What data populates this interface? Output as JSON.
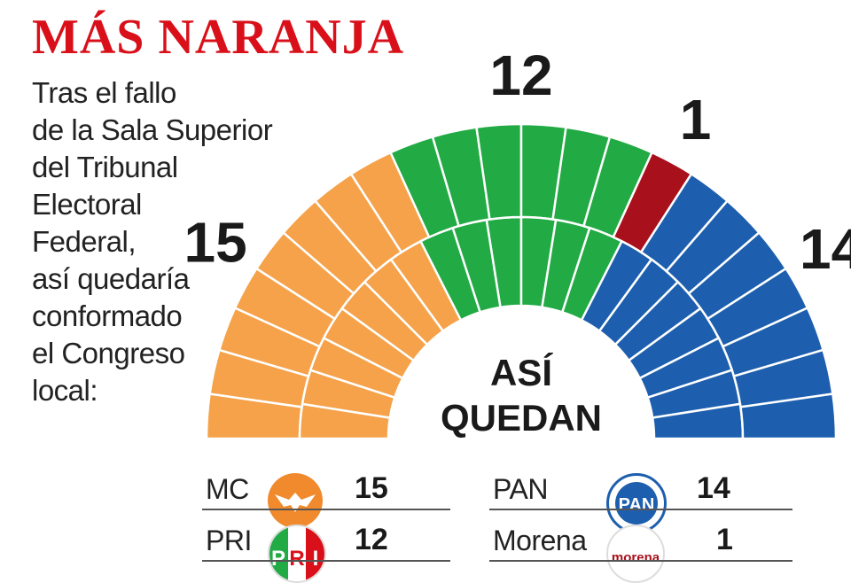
{
  "title": "MÁS NARANJA",
  "subtitle_lines": [
    "Tras el fallo",
    "de la Sala Superior",
    "del Tribunal",
    "Electoral",
    "Federal,",
    "así quedaría",
    "conformado",
    "el Congreso",
    "local:"
  ],
  "center_label": [
    "ASÍ",
    "QUEDAN"
  ],
  "chart_data": {
    "type": "parliament",
    "total_seats": 42,
    "series": [
      {
        "name": "MC",
        "value": 15,
        "color": "#f5a24a"
      },
      {
        "name": "PRI",
        "value": 12,
        "color": "#22aa44"
      },
      {
        "name": "Morena",
        "value": 1,
        "color": "#a8101c"
      },
      {
        "name": "PAN",
        "value": 14,
        "color": "#1d5fae"
      }
    ]
  },
  "legend": [
    {
      "name": "MC",
      "value": "15",
      "logo_icon": "mc-eagle-logo-icon",
      "logo_color": "#f08a2c"
    },
    {
      "name": "PRI",
      "value": "12",
      "logo_icon": "pri-logo-icon",
      "logo_color": "#22aa44"
    },
    {
      "name": "PAN",
      "value": "14",
      "logo_icon": "pan-logo-icon",
      "logo_color": "#1d5fae"
    },
    {
      "name": "Morena",
      "value": "1",
      "logo_icon": "morena-logo-icon",
      "logo_color": "#a8101c"
    }
  ],
  "logo_text": {
    "pan": "PAN",
    "morena": "morena"
  }
}
